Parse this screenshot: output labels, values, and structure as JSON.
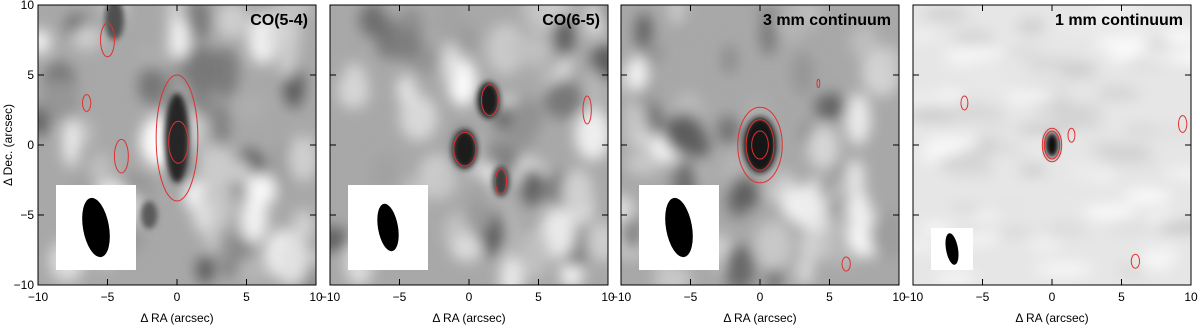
{
  "chart_data": [
    {
      "type": "image",
      "title": "CO(5-4)",
      "xlabel": "Δ RA (arcsec)",
      "ylabel": "Δ Dec. (arcsec)",
      "xlim": [
        -10,
        10
      ],
      "ylim": [
        -10,
        10
      ],
      "xticks": [
        {
          "value": -10,
          "label": "−10"
        },
        {
          "value": -5,
          "label": "−5"
        },
        0,
        5,
        10
      ],
      "yticks": [
        {
          "value": -10,
          "label": "−10"
        },
        {
          "value": -5,
          "label": "−5"
        },
        0,
        5,
        10
      ]
    },
    {
      "type": "image",
      "title": "CO(6-5)",
      "xlabel": "Δ RA (arcsec)",
      "xlim": [
        -10,
        10
      ],
      "ylim": [
        -10,
        10
      ],
      "xticks": [
        {
          "value": -10,
          "label": "−10"
        },
        {
          "value": -5,
          "label": "−5"
        },
        0,
        5,
        10
      ]
    },
    {
      "type": "image",
      "title": "3 mm continuum",
      "xlabel": "Δ RA (arcsec)",
      "xlim": [
        -10,
        10
      ],
      "ylim": [
        -10,
        10
      ],
      "xticks": [
        {
          "value": -10,
          "label": "−10"
        },
        {
          "value": -5,
          "label": "−5"
        },
        0,
        5,
        10
      ]
    },
    {
      "type": "image",
      "title": "1 mm continuum",
      "xlabel": "Δ RA (arcsec)",
      "xlim": [
        -10,
        10
      ],
      "ylim": [
        -10,
        10
      ],
      "xticks": [
        {
          "value": -10,
          "label": "−10"
        },
        {
          "value": -5,
          "label": "−5"
        },
        0,
        5,
        10
      ]
    }
  ]
}
